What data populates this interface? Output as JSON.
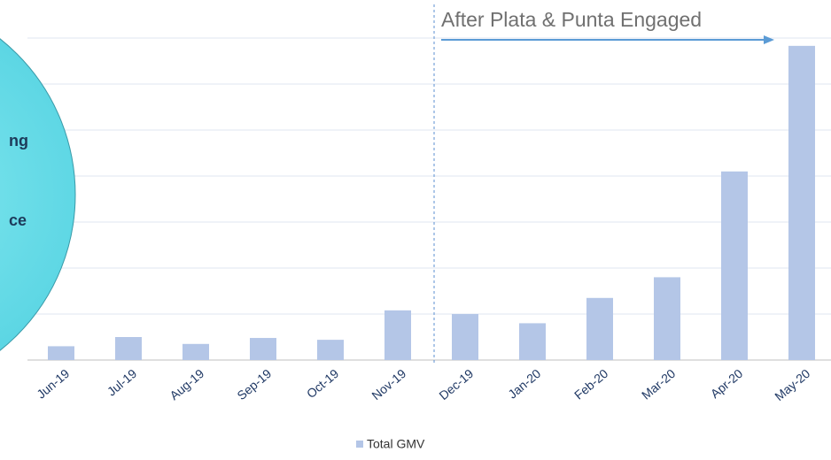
{
  "chart_data": {
    "type": "bar",
    "annotation": "After Plata & Punta Engaged",
    "side_texts": [
      "ng",
      "ce"
    ],
    "categories": [
      "Jun-19",
      "Jul-19",
      "Aug-19",
      "Sep-19",
      "Oct-19",
      "Nov-19",
      "Dec-19",
      "Jan-20",
      "Feb-20",
      "Mar-20",
      "Apr-20",
      "May-20"
    ],
    "series": [
      {
        "name": "Total GMV",
        "color": "#b4c6e7",
        "values": [
          0.3,
          0.5,
          0.35,
          0.48,
          0.44,
          1.08,
          1.0,
          0.8,
          1.35,
          1.8,
          4.1,
          6.83
        ]
      }
    ],
    "ylim": [
      0,
      7
    ],
    "yticks": [
      0,
      1,
      2,
      3,
      4,
      5,
      6,
      7
    ],
    "grid": true
  }
}
